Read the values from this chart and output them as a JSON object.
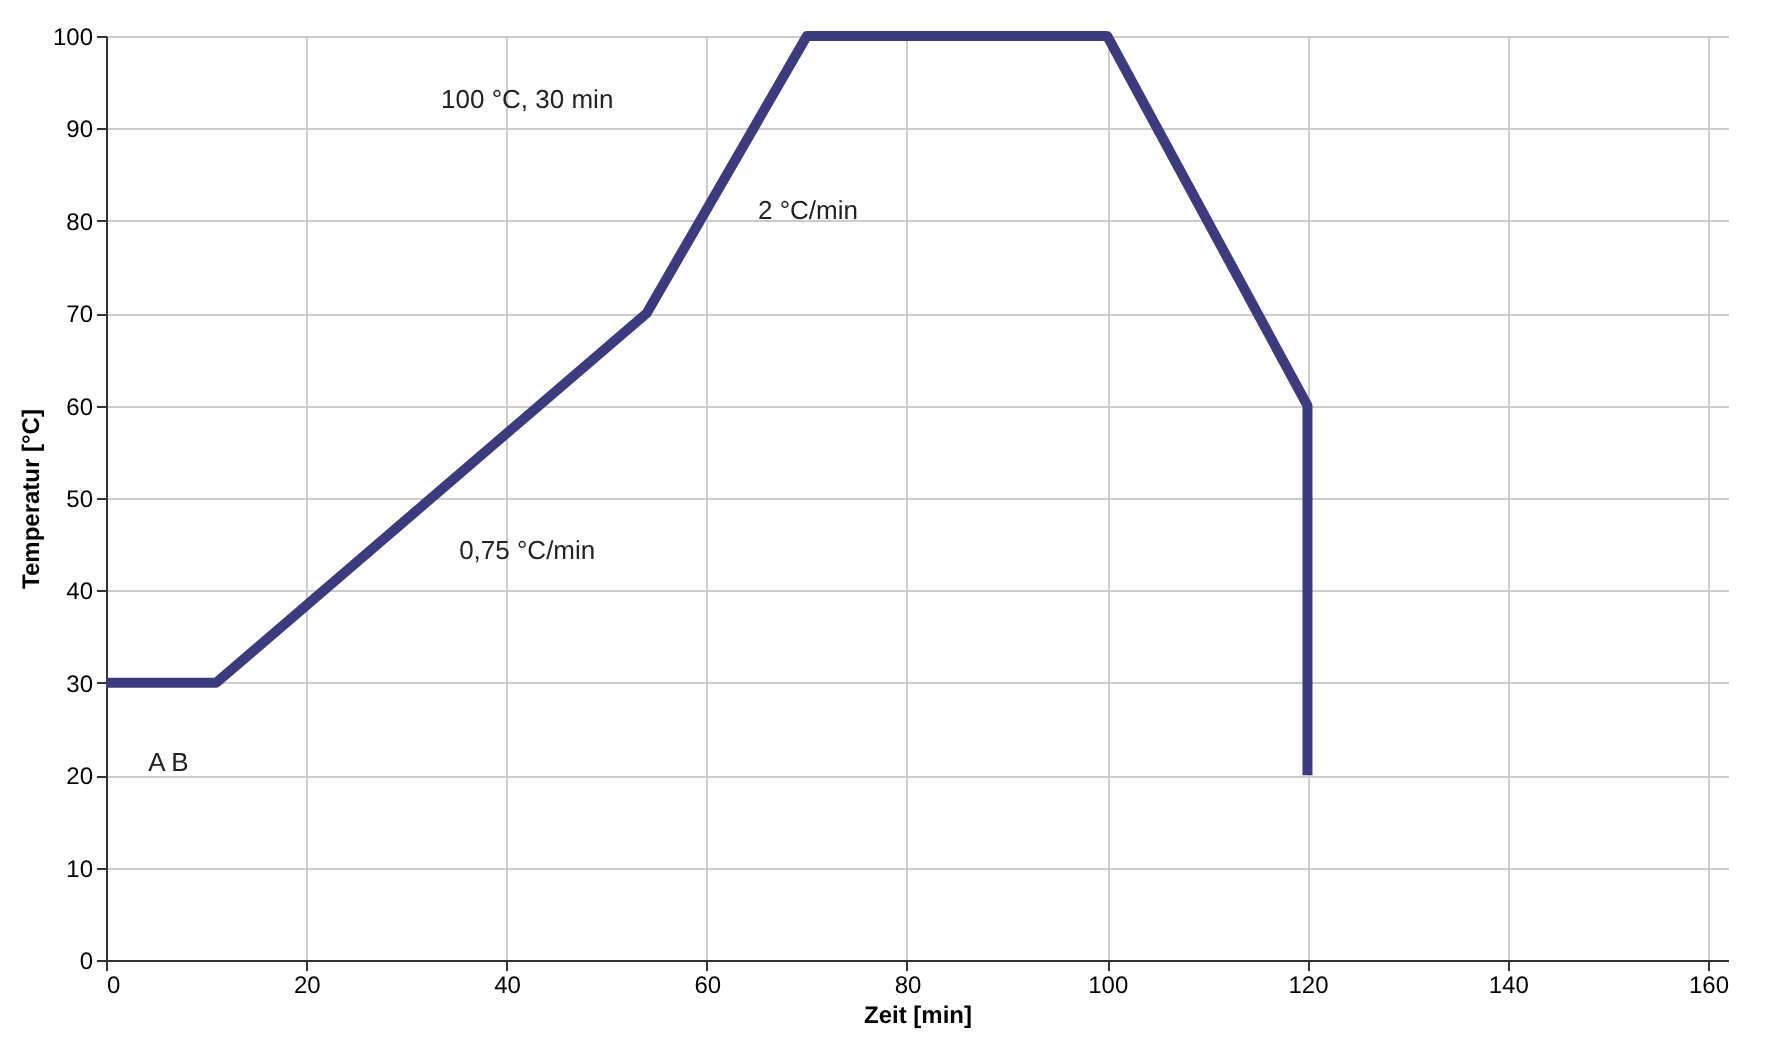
{
  "chart_data": {
    "type": "line",
    "xlabel": "Zeit [min]",
    "ylabel": "Temperatur [°C]",
    "x": [
      0,
      11,
      54,
      70,
      100,
      120,
      120
    ],
    "series": [
      {
        "color": "#3b3b7d",
        "values": [
          30,
          30,
          70,
          100,
          100,
          60,
          20
        ]
      }
    ],
    "xlim": [
      0,
      162
    ],
    "xticks": [
      0,
      20,
      40,
      60,
      80,
      100,
      120,
      140,
      160
    ],
    "ylim": [
      0,
      100
    ],
    "yticks": [
      0,
      10,
      20,
      30,
      40,
      50,
      60,
      70,
      80,
      90,
      100
    ],
    "grid": true,
    "line_style": "solid",
    "marker": "none",
    "annotations": [
      "100 °C, 30 min",
      "2 °C/min",
      "0,75 °C/min",
      "A B"
    ]
  }
}
